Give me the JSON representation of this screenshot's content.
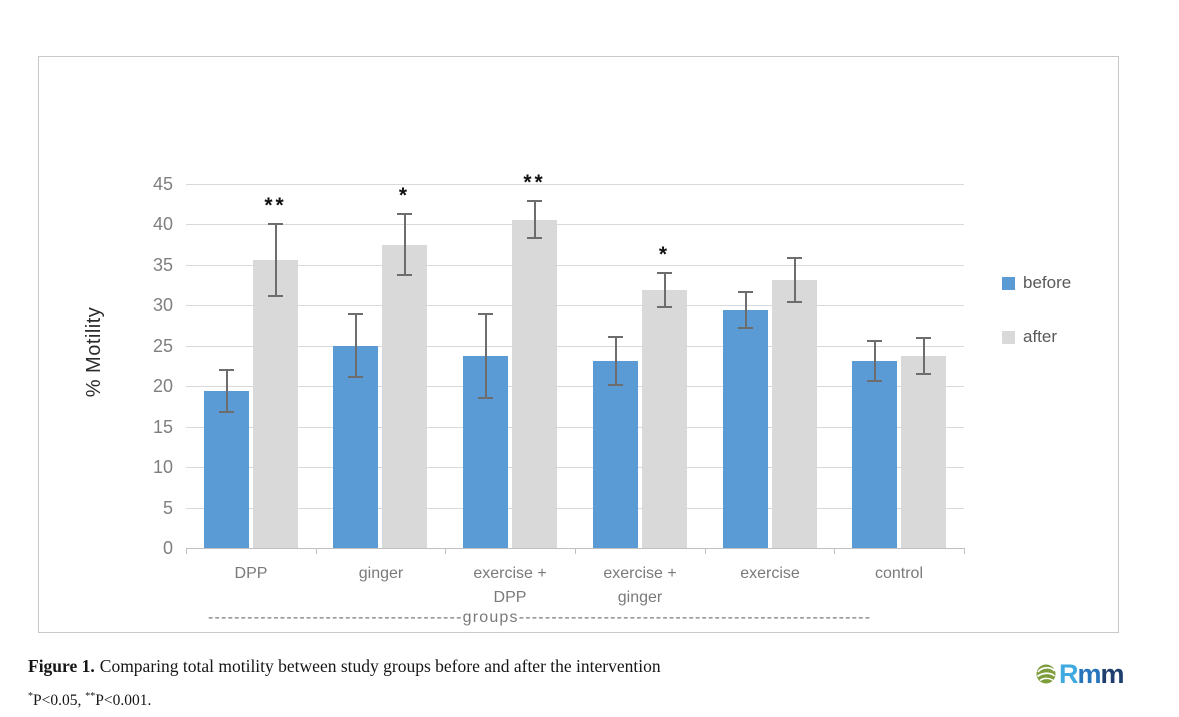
{
  "figure": {
    "caption": {
      "label": "Figure 1.",
      "text": "Comparing total motility between study groups before and after the intervention",
      "note": {
        "sup1": "*",
        "p1": "P<0.05, ",
        "sup2": "**",
        "p2": "P<0.001."
      }
    }
  },
  "logo": {
    "icon": "leaf-swirl-icon",
    "icon_color": "#7d9c3c",
    "letters": [
      "R",
      "m",
      "m"
    ],
    "letter_colors": [
      "#3fa9e0",
      "#2775bc",
      "#1e3f6e"
    ]
  },
  "chart_data": {
    "type": "bar",
    "title": "",
    "ylabel": "% Motility",
    "xlabel": "groups",
    "xlabel_line": "---------------------------------------groups------------------------------------------------------",
    "ylim": [
      0,
      45
    ],
    "ytick_step": 5,
    "grid": true,
    "legend_position": "right",
    "categories": [
      "DPP",
      "ginger",
      "exercise + DPP",
      "exercise + ginger",
      "exercise",
      "control"
    ],
    "series": [
      {
        "name": "before",
        "color": "#5B9BD5",
        "values": [
          19.4,
          25.0,
          23.7,
          23.1,
          29.4,
          23.1
        ],
        "errors": [
          2.6,
          3.9,
          5.2,
          3.0,
          2.2,
          2.5
        ]
      },
      {
        "name": "after",
        "color": "#D9D9D9",
        "values": [
          35.6,
          37.5,
          40.6,
          31.9,
          33.1,
          23.7
        ],
        "errors": [
          4.5,
          3.8,
          2.3,
          2.1,
          2.7,
          2.2
        ]
      }
    ],
    "significance_on_after": [
      "**",
      "*",
      "**",
      "*",
      "",
      ""
    ],
    "error_bar_color": "#6d6d6d"
  }
}
